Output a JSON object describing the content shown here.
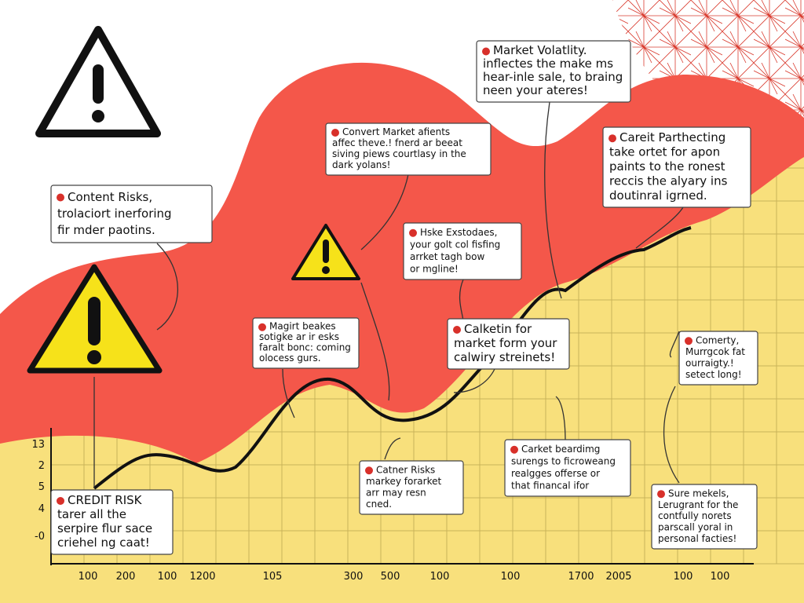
{
  "callouts": [
    {
      "lines": [
        "Market Volatlity.",
        "inflectes the make ms",
        "hear-inle sale, to braing",
        "neen your ateres!"
      ]
    },
    {
      "lines": [
        "Convert Market afients",
        "affec theve.! fnerd ar beeat",
        "siving piews courtlasy in the",
        "dark yolans!"
      ]
    },
    {
      "lines": [
        "Careit Parthecting",
        "take ortet for apon",
        "paints to the ronest",
        "reccis the alyary ins",
        "doutinral igrned."
      ]
    },
    {
      "lines": [
        "Content Risks,",
        "trolaciort inerforing",
        "fir mder paotins."
      ]
    },
    {
      "lines": [
        "Hske Exstodaes,",
        "your golt col fisfing",
        "arrket tagh bow",
        "or mgline!"
      ]
    },
    {
      "lines": [
        "Magirt beakes",
        "sotigke ar ir esks",
        "faralt bonc: coming",
        "olocess gurs."
      ]
    },
    {
      "lines": [
        "Calketin for",
        "market form your",
        "calwiry streinets!"
      ]
    },
    {
      "lines": [
        "Comerty,",
        "Murrgcok fat",
        "ourraigty.!",
        "setect long!"
      ]
    },
    {
      "lines": [
        "CREDIT RISK",
        "tarer all the",
        "serpire flur sace",
        "criehel ng caat!"
      ]
    },
    {
      "lines": [
        "Catner Risks",
        "markey forarket",
        "arr may resn",
        "cned."
      ]
    },
    {
      "lines": [
        "Carket beardimg",
        "surengs to ficroweang",
        "realgges offerse or",
        "that financal ifor"
      ]
    },
    {
      "lines": [
        "Sure mekels,",
        "Lerugrant for the",
        "contfully norets",
        "parscall yoral in",
        "personal facties!"
      ]
    }
  ],
  "y_axis_labels": [
    "13",
    "2",
    "5",
    "4",
    "-0"
  ],
  "x_axis_labels": [
    "100",
    "200",
    "100",
    "1200",
    "105",
    "300",
    "500",
    "100",
    "100",
    "1700",
    "2005",
    "100",
    "100"
  ]
}
